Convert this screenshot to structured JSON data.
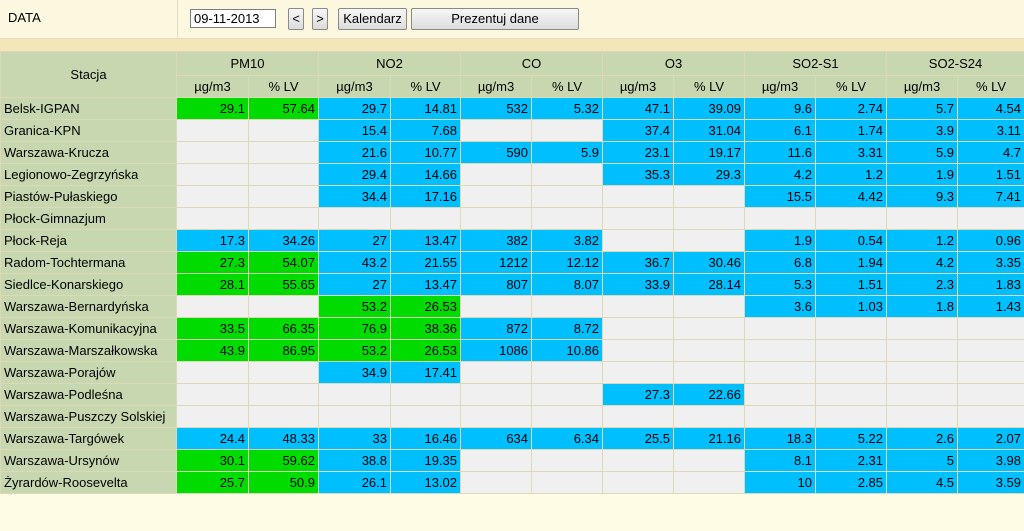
{
  "header": {
    "label": "DATA",
    "date_value": "09-11-2013",
    "prev_label": "<",
    "next_label": ">",
    "calendar_label": "Kalendarz",
    "show_label": "Prezentuj dane"
  },
  "colors": {
    "good": "#00dc00",
    "moderate": "#00bfff",
    "empty": "#f0f0f0",
    "header_bg": "#c7d8b1"
  },
  "table": {
    "station_header": "Stacja",
    "groups": [
      "PM10",
      "NO2",
      "CO",
      "O3",
      "SO2-S1",
      "SO2-S24"
    ],
    "subheaders": [
      "µg/m3",
      "% LV"
    ],
    "rows": [
      {
        "name": "Belsk-IGPAN",
        "cells": [
          [
            "29.1",
            "57.64",
            "g"
          ],
          [
            "29.7",
            "14.81",
            "b"
          ],
          [
            "532",
            "5.32",
            "b"
          ],
          [
            "47.1",
            "39.09",
            "b"
          ],
          [
            "9.6",
            "2.74",
            "b"
          ],
          [
            "5.7",
            "4.54",
            "b"
          ]
        ]
      },
      {
        "name": "Granica-KPN",
        "cells": [
          [
            "",
            "",
            "e"
          ],
          [
            "15.4",
            "7.68",
            "b"
          ],
          [
            "",
            "",
            "e"
          ],
          [
            "37.4",
            "31.04",
            "b"
          ],
          [
            "6.1",
            "1.74",
            "b"
          ],
          [
            "3.9",
            "3.11",
            "b"
          ]
        ]
      },
      {
        "name": "Warszawa-Krucza",
        "cells": [
          [
            "",
            "",
            "e"
          ],
          [
            "21.6",
            "10.77",
            "b"
          ],
          [
            "590",
            "5.9",
            "b"
          ],
          [
            "23.1",
            "19.17",
            "b"
          ],
          [
            "11.6",
            "3.31",
            "b"
          ],
          [
            "5.9",
            "4.7",
            "b"
          ]
        ]
      },
      {
        "name": "Legionowo-Zegrzyńska",
        "cells": [
          [
            "",
            "",
            "e"
          ],
          [
            "29.4",
            "14.66",
            "b"
          ],
          [
            "",
            "",
            "e"
          ],
          [
            "35.3",
            "29.3",
            "b"
          ],
          [
            "4.2",
            "1.2",
            "b"
          ],
          [
            "1.9",
            "1.51",
            "b"
          ]
        ]
      },
      {
        "name": "Piastów-Pułaskiego",
        "cells": [
          [
            "",
            "",
            "e"
          ],
          [
            "34.4",
            "17.16",
            "b"
          ],
          [
            "",
            "",
            "e"
          ],
          [
            "",
            "",
            "e"
          ],
          [
            "15.5",
            "4.42",
            "b"
          ],
          [
            "9.3",
            "7.41",
            "b"
          ]
        ]
      },
      {
        "name": "Płock-Gimnazjum",
        "cells": [
          [
            "",
            "",
            "e"
          ],
          [
            "",
            "",
            "e"
          ],
          [
            "",
            "",
            "e"
          ],
          [
            "",
            "",
            "e"
          ],
          [
            "",
            "",
            "e"
          ],
          [
            "",
            "",
            "e"
          ]
        ]
      },
      {
        "name": "Płock-Reja",
        "cells": [
          [
            "17.3",
            "34.26",
            "b"
          ],
          [
            "27",
            "13.47",
            "b"
          ],
          [
            "382",
            "3.82",
            "b"
          ],
          [
            "",
            "",
            "e"
          ],
          [
            "1.9",
            "0.54",
            "b"
          ],
          [
            "1.2",
            "0.96",
            "b"
          ]
        ]
      },
      {
        "name": "Radom-Tochtermana",
        "cells": [
          [
            "27.3",
            "54.07",
            "g"
          ],
          [
            "43.2",
            "21.55",
            "b"
          ],
          [
            "1212",
            "12.12",
            "b"
          ],
          [
            "36.7",
            "30.46",
            "b"
          ],
          [
            "6.8",
            "1.94",
            "b"
          ],
          [
            "4.2",
            "3.35",
            "b"
          ]
        ]
      },
      {
        "name": "Siedlce-Konarskiego",
        "cells": [
          [
            "28.1",
            "55.65",
            "g"
          ],
          [
            "27",
            "13.47",
            "b"
          ],
          [
            "807",
            "8.07",
            "b"
          ],
          [
            "33.9",
            "28.14",
            "b"
          ],
          [
            "5.3",
            "1.51",
            "b"
          ],
          [
            "2.3",
            "1.83",
            "b"
          ]
        ]
      },
      {
        "name": "Warszawa-Bernardyńska",
        "cells": [
          [
            "",
            "",
            "e"
          ],
          [
            "53.2",
            "26.53",
            "g"
          ],
          [
            "",
            "",
            "e"
          ],
          [
            "",
            "",
            "e"
          ],
          [
            "3.6",
            "1.03",
            "b"
          ],
          [
            "1.8",
            "1.43",
            "b"
          ]
        ]
      },
      {
        "name": "Warszawa-Komunikacyjna",
        "cells": [
          [
            "33.5",
            "66.35",
            "g"
          ],
          [
            "76.9",
            "38.36",
            "g"
          ],
          [
            "872",
            "8.72",
            "b"
          ],
          [
            "",
            "",
            "e"
          ],
          [
            "",
            "",
            "e"
          ],
          [
            "",
            "",
            "e"
          ]
        ]
      },
      {
        "name": "Warszawa-Marszałkowska",
        "cells": [
          [
            "43.9",
            "86.95",
            "g"
          ],
          [
            "53.2",
            "26.53",
            "g"
          ],
          [
            "1086",
            "10.86",
            "b"
          ],
          [
            "",
            "",
            "e"
          ],
          [
            "",
            "",
            "e"
          ],
          [
            "",
            "",
            "e"
          ]
        ]
      },
      {
        "name": "Warszawa-Porajów",
        "cells": [
          [
            "",
            "",
            "e"
          ],
          [
            "34.9",
            "17.41",
            "b"
          ],
          [
            "",
            "",
            "e"
          ],
          [
            "",
            "",
            "e"
          ],
          [
            "",
            "",
            "e"
          ],
          [
            "",
            "",
            "e"
          ]
        ]
      },
      {
        "name": "Warszawa-Podleśna",
        "cells": [
          [
            "",
            "",
            "e"
          ],
          [
            "",
            "",
            "e"
          ],
          [
            "",
            "",
            "e"
          ],
          [
            "27.3",
            "22.66",
            "b"
          ],
          [
            "",
            "",
            "e"
          ],
          [
            "",
            "",
            "e"
          ]
        ]
      },
      {
        "name": "Warszawa-Puszczy Solskiej",
        "cells": [
          [
            "",
            "",
            "e"
          ],
          [
            "",
            "",
            "e"
          ],
          [
            "",
            "",
            "e"
          ],
          [
            "",
            "",
            "e"
          ],
          [
            "",
            "",
            "e"
          ],
          [
            "",
            "",
            "e"
          ]
        ]
      },
      {
        "name": "Warszawa-Targówek",
        "cells": [
          [
            "24.4",
            "48.33",
            "b"
          ],
          [
            "33",
            "16.46",
            "b"
          ],
          [
            "634",
            "6.34",
            "b"
          ],
          [
            "25.5",
            "21.16",
            "b"
          ],
          [
            "18.3",
            "5.22",
            "b"
          ],
          [
            "2.6",
            "2.07",
            "b"
          ]
        ]
      },
      {
        "name": "Warszawa-Ursynów",
        "cells": [
          [
            "30.1",
            "59.62",
            "g"
          ],
          [
            "38.8",
            "19.35",
            "b"
          ],
          [
            "",
            "",
            "e"
          ],
          [
            "",
            "",
            "e"
          ],
          [
            "8.1",
            "2.31",
            "b"
          ],
          [
            "5",
            "3.98",
            "b"
          ]
        ]
      },
      {
        "name": "Żyrardów-Roosevelta",
        "cells": [
          [
            "25.7",
            "50.9",
            "g"
          ],
          [
            "26.1",
            "13.02",
            "b"
          ],
          [
            "",
            "",
            "e"
          ],
          [
            "",
            "",
            "e"
          ],
          [
            "10",
            "2.85",
            "b"
          ],
          [
            "4.5",
            "3.59",
            "b"
          ]
        ]
      }
    ]
  }
}
